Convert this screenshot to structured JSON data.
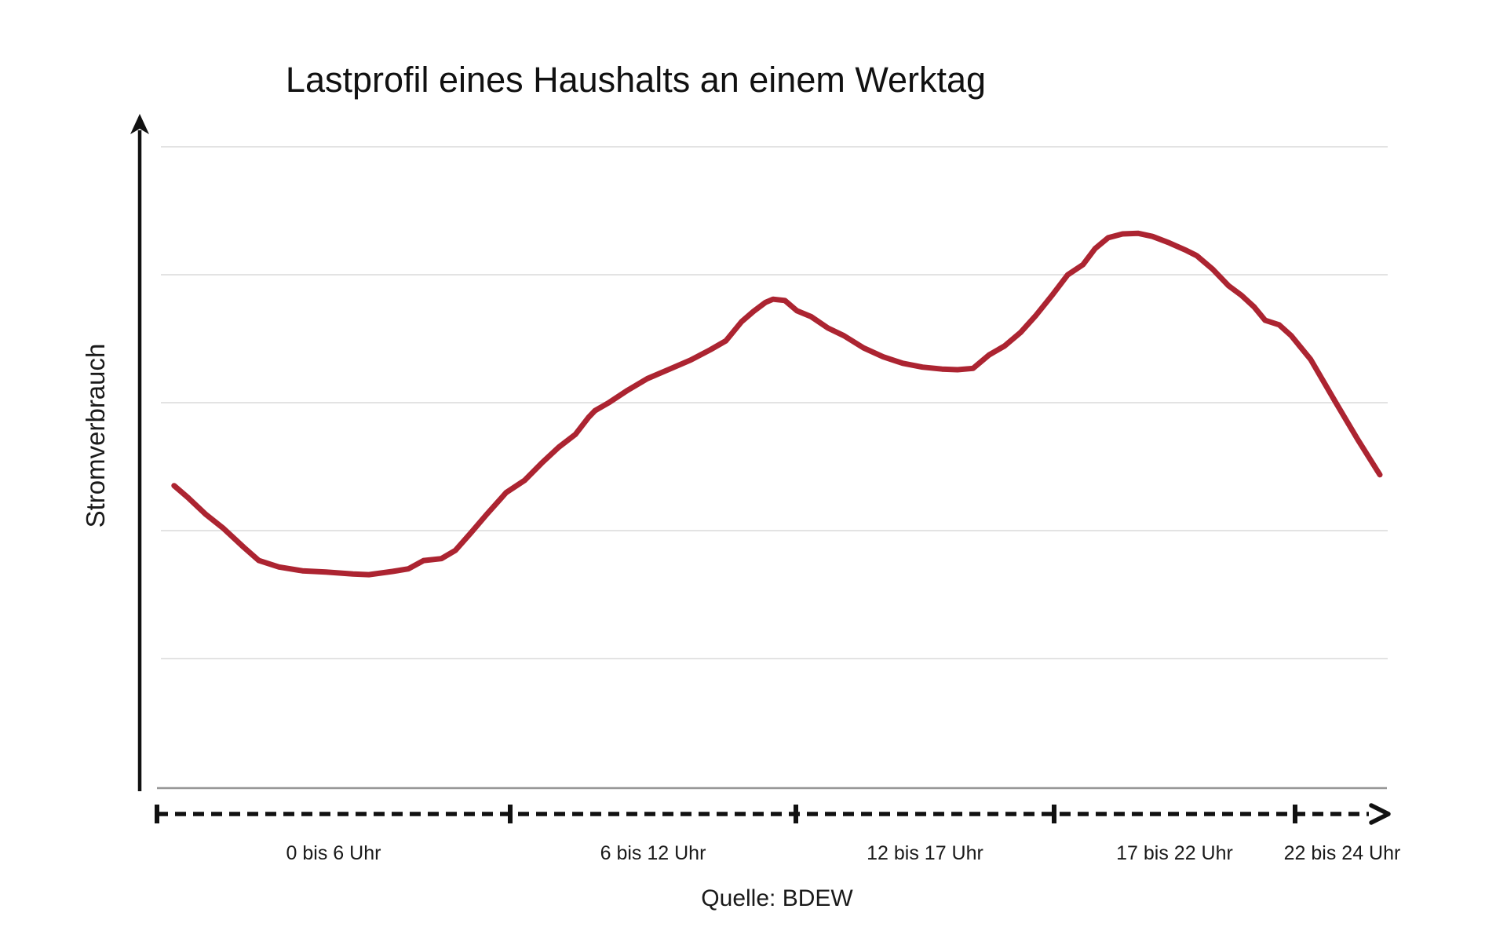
{
  "title": "Lastprofil eines Haushalts an einem Werktag",
  "y_axis_label": "Stromverbrauch",
  "source": "Quelle: BDEW",
  "x_segments": [
    "0 bis 6 Uhr",
    "6 bis 12 Uhr",
    "12 bis 17 Uhr",
    "17 bis 22 Uhr",
    "22 bis 24 Uhr"
  ],
  "colors": {
    "line": "#AC2431",
    "grid": "#e3e3e3",
    "baseline": "#969696",
    "axis": "#111111",
    "text": "#1a1a1a"
  },
  "chart_data": {
    "type": "line",
    "title": "Lastprofil eines Haushalts an einem Werktag",
    "xlabel": "",
    "ylabel": "Stromverbrauch",
    "x_unit": "hour_of_day",
    "y_scale": "relative load (no numeric scale shown), 0-100",
    "ylim": [
      0,
      100
    ],
    "grid": "horizontal gridlines only (5 lines)",
    "legend": "none",
    "x_segment_labels": [
      "0 bis 6 Uhr",
      "6 bis 12 Uhr",
      "12 bis 17 Uhr",
      "17 bis 22 Uhr",
      "22 bis 24 Uhr"
    ],
    "x_segment_bounds_hours": [
      0,
      6,
      12,
      17,
      22,
      24
    ],
    "source": "Quelle: BDEW",
    "series": [
      {
        "name": "Lastprofil Haushalt Werktag",
        "points": [
          [
            0.29,
            47.1
          ],
          [
            0.53,
            45.2
          ],
          [
            0.83,
            42.6
          ],
          [
            1.13,
            40.4
          ],
          [
            1.47,
            37.5
          ],
          [
            1.73,
            35.4
          ],
          [
            2.07,
            34.4
          ],
          [
            2.47,
            33.8
          ],
          [
            2.87,
            33.6
          ],
          [
            3.33,
            33.3
          ],
          [
            3.6,
            33.2
          ],
          [
            4.0,
            33.7
          ],
          [
            4.27,
            34.1
          ],
          [
            4.53,
            35.4
          ],
          [
            4.83,
            35.7
          ],
          [
            5.07,
            37.0
          ],
          [
            5.33,
            39.7
          ],
          [
            5.6,
            42.6
          ],
          [
            5.93,
            46.0
          ],
          [
            6.3,
            47.9
          ],
          [
            6.66,
            50.6
          ],
          [
            7.02,
            53.1
          ],
          [
            7.37,
            55.1
          ],
          [
            7.65,
            57.8
          ],
          [
            7.78,
            58.8
          ],
          [
            8.06,
            60.0
          ],
          [
            8.47,
            62.0
          ],
          [
            8.88,
            63.8
          ],
          [
            9.35,
            65.3
          ],
          [
            9.79,
            66.7
          ],
          [
            10.2,
            68.3
          ],
          [
            10.53,
            69.7
          ],
          [
            10.86,
            72.7
          ],
          [
            11.11,
            74.3
          ],
          [
            11.36,
            75.7
          ],
          [
            11.52,
            76.2
          ],
          [
            11.77,
            76.0
          ],
          [
            12.02,
            74.4
          ],
          [
            12.29,
            73.5
          ],
          [
            12.62,
            71.7
          ],
          [
            12.93,
            70.5
          ],
          [
            13.31,
            68.6
          ],
          [
            13.69,
            67.2
          ],
          [
            14.07,
            66.2
          ],
          [
            14.45,
            65.6
          ],
          [
            14.83,
            65.3
          ],
          [
            15.13,
            65.2
          ],
          [
            15.43,
            65.4
          ],
          [
            15.74,
            67.5
          ],
          [
            16.04,
            68.9
          ],
          [
            16.35,
            71.0
          ],
          [
            16.65,
            73.7
          ],
          [
            16.95,
            76.7
          ],
          [
            17.28,
            80.0
          ],
          [
            17.6,
            81.6
          ],
          [
            17.85,
            84.1
          ],
          [
            18.12,
            85.8
          ],
          [
            18.42,
            86.4
          ],
          [
            18.74,
            86.5
          ],
          [
            19.04,
            86.0
          ],
          [
            19.39,
            85.0
          ],
          [
            19.75,
            83.8
          ],
          [
            19.96,
            83.0
          ],
          [
            20.29,
            80.9
          ],
          [
            20.62,
            78.3
          ],
          [
            20.89,
            76.8
          ],
          [
            21.15,
            75.0
          ],
          [
            21.38,
            72.9
          ],
          [
            21.67,
            72.2
          ],
          [
            21.92,
            70.5
          ],
          [
            22.33,
            66.8
          ],
          [
            22.83,
            60.5
          ],
          [
            23.33,
            54.3
          ],
          [
            23.8,
            48.8
          ]
        ]
      }
    ]
  }
}
